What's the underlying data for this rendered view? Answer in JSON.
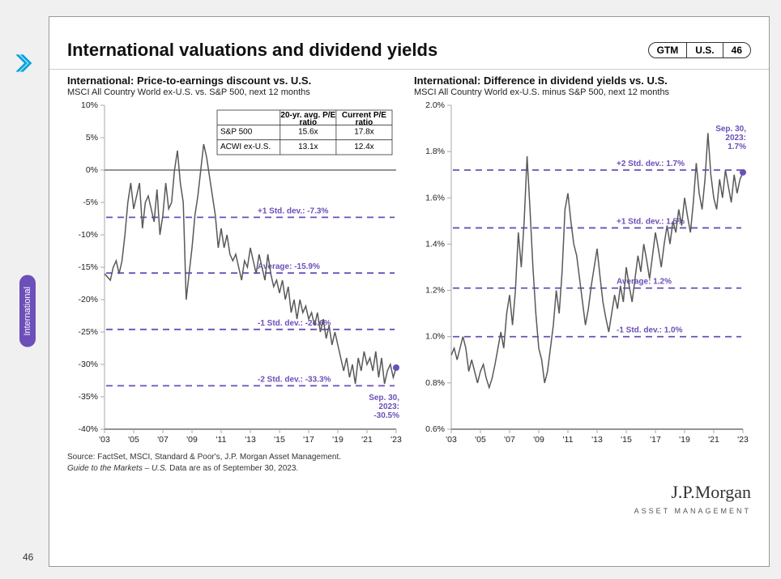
{
  "header": {
    "title": "International valuations and dividend yields",
    "pill": {
      "a": "GTM",
      "b": "U.S.",
      "c": "46"
    },
    "side_tab": "International",
    "page_number": "46"
  },
  "style": {
    "accent": "#6c4fb8",
    "series_color": "#595959",
    "axis_color": "#222222",
    "tick_color": "#a8a8a8",
    "background": "#ffffff",
    "arrow_color": "#00a3e0",
    "dash": "8 6"
  },
  "chart_left": {
    "type": "line",
    "title": "International: Price-to-earnings discount vs. U.S.",
    "subtitle": "MSCI All Country World ex-U.S. vs. S&P 500, next 12 months",
    "ylim": [
      -40,
      10
    ],
    "ytick_step": 5,
    "y_format": "pct",
    "xlabels": [
      "'03",
      "'05",
      "'07",
      "'09",
      "'11",
      "'13",
      "'15",
      "'17",
      "'19",
      "'21",
      "'23"
    ],
    "ref_lines": [
      {
        "label": "+1 Std. dev.: -7.3%",
        "value": -7.3
      },
      {
        "label": "Average: -15.9%",
        "value": -15.9
      },
      {
        "label": "-1 Std. dev.: -24.6%",
        "value": -24.6
      },
      {
        "label": "-2 Std. dev.: -33.3%",
        "value": -33.3
      }
    ],
    "callout": {
      "label_1": "Sep. 30,",
      "label_2": "2023:",
      "label_3": "-30.5%",
      "value": -30.5
    },
    "table": {
      "headers": [
        "",
        "20-yr. avg. P/E ratio",
        "Current P/E ratio"
      ],
      "rows": [
        [
          "S&P 500",
          "15.6x",
          "17.8x"
        ],
        [
          "ACWI ex-U.S.",
          "13.1x",
          "12.4x"
        ]
      ]
    },
    "series": [
      -16,
      -16.5,
      -17,
      -15,
      -14,
      -16,
      -14,
      -10,
      -5,
      -2,
      -6,
      -4,
      -2,
      -9,
      -5,
      -4,
      -6,
      -8,
      -3,
      -10,
      -7,
      -2,
      -6,
      -5,
      0,
      3,
      -2,
      -5,
      -20,
      -16,
      -12,
      -7,
      -4,
      0,
      4,
      2,
      -1,
      -4,
      -7,
      -12,
      -9,
      -12,
      -10,
      -13,
      -14,
      -13,
      -15,
      -17,
      -14,
      -15,
      -12,
      -14,
      -16,
      -13,
      -15,
      -17,
      -13,
      -16,
      -18,
      -17,
      -19,
      -17,
      -20,
      -18,
      -22,
      -20,
      -23,
      -20,
      -22,
      -21,
      -23,
      -22,
      -24,
      -22,
      -25,
      -23,
      -26,
      -24,
      -27,
      -25,
      -27,
      -29,
      -31,
      -29,
      -32,
      -30,
      -33,
      -29,
      -31,
      -28,
      -30,
      -29,
      -31,
      -28,
      -32,
      -29,
      -33,
      -31,
      -30,
      -32,
      -30.5
    ]
  },
  "chart_right": {
    "type": "line",
    "title": "International: Difference in dividend yields vs. U.S.",
    "subtitle": "MSCI All Country World ex-U.S. minus S&P 500, next 12 months",
    "ylim": [
      0.6,
      2.0
    ],
    "ytick_step": 0.2,
    "y_format": "pct1",
    "xlabels": [
      "'03",
      "'05",
      "'07",
      "'09",
      "'11",
      "'13",
      "'15",
      "'17",
      "'19",
      "'21",
      "'23"
    ],
    "ref_lines": [
      {
        "label": "+2 Std. dev.: 1.7%",
        "value": 1.72
      },
      {
        "label": "+1 Std. dev.: 1.5%",
        "value": 1.47
      },
      {
        "label": "Average: 1.2%",
        "value": 1.21
      },
      {
        "label": "-1 Std. dev.: 1.0%",
        "value": 1.0
      }
    ],
    "callout": {
      "label_1": "Sep. 30,",
      "label_2": "2023:",
      "label_3": "1.7%",
      "value": 1.71
    },
    "series": [
      0.92,
      0.95,
      0.9,
      0.95,
      1.0,
      0.95,
      0.85,
      0.9,
      0.85,
      0.8,
      0.85,
      0.88,
      0.82,
      0.78,
      0.82,
      0.88,
      0.95,
      1.02,
      0.95,
      1.1,
      1.18,
      1.05,
      1.2,
      1.45,
      1.3,
      1.5,
      1.78,
      1.55,
      1.3,
      1.1,
      0.95,
      0.9,
      0.8,
      0.85,
      0.95,
      1.05,
      1.2,
      1.1,
      1.28,
      1.55,
      1.62,
      1.5,
      1.4,
      1.35,
      1.25,
      1.15,
      1.05,
      1.12,
      1.22,
      1.3,
      1.38,
      1.26,
      1.15,
      1.08,
      1.02,
      1.1,
      1.18,
      1.12,
      1.22,
      1.15,
      1.3,
      1.22,
      1.15,
      1.25,
      1.35,
      1.28,
      1.4,
      1.33,
      1.25,
      1.35,
      1.45,
      1.38,
      1.3,
      1.4,
      1.48,
      1.4,
      1.5,
      1.45,
      1.55,
      1.48,
      1.6,
      1.52,
      1.45,
      1.58,
      1.75,
      1.62,
      1.55,
      1.68,
      1.88,
      1.7,
      1.6,
      1.55,
      1.68,
      1.6,
      1.72,
      1.65,
      1.58,
      1.7,
      1.62,
      1.68,
      1.71
    ]
  },
  "footer": {
    "source": "Source: FactSet, MSCI, Standard & Poor's, J.P. Morgan Asset Management.",
    "note_italic": "Guide to the Markets – U.S.",
    "note_rest": " Data are as of September 30, 2023.",
    "brand_name": "J.P.Morgan",
    "brand_sub": "ASSET MANAGEMENT"
  }
}
